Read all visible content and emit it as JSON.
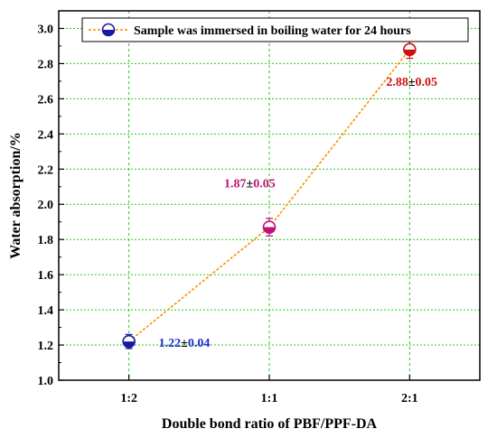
{
  "chart_data": {
    "type": "line",
    "categories": [
      "1:2",
      "1:1",
      "2:1"
    ],
    "series": [
      {
        "name": "Sample was immersed in boiling water for 24 hours",
        "values": [
          1.22,
          1.87,
          2.88
        ],
        "errors": [
          0.04,
          0.05,
          0.05
        ],
        "line_color": "#ff8c00",
        "line_style": "dashed",
        "point_colors": [
          "#1a1aa0",
          "#c0137a",
          "#cc1111"
        ]
      }
    ],
    "data_labels": [
      {
        "value": "1.22",
        "pm": "±",
        "err": "0.04",
        "color": "#1a2ed6"
      },
      {
        "value": "1.87",
        "pm": "±",
        "err": "0.05",
        "color": "#c0137a"
      },
      {
        "value": "2.88",
        "pm": "±",
        "err": "0.05",
        "color": "#cc1111"
      }
    ],
    "xlabel": "Double bond ratio of PBF/PPF-DA",
    "ylabel": "Water absorption/%",
    "ylim": [
      1.0,
      3.1
    ],
    "yticks": [
      "1.0",
      "1.2",
      "1.4",
      "1.6",
      "1.8",
      "2.0",
      "2.2",
      "2.4",
      "2.6",
      "2.8",
      "3.0"
    ],
    "grid": true,
    "grid_color": "#22cc22",
    "legend_position": "top"
  }
}
